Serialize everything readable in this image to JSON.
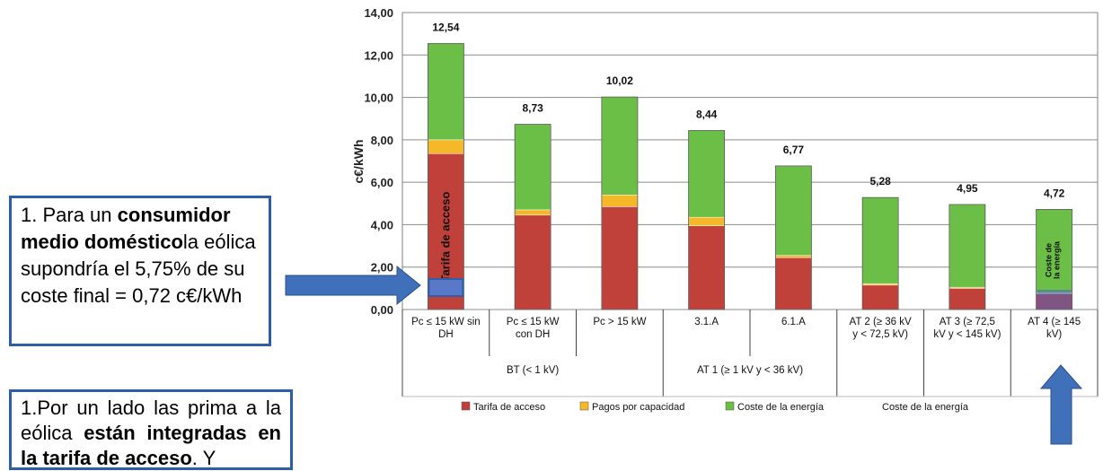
{
  "callouts": {
    "first": {
      "p1": "1. Para un ",
      "b1": "consumidor medio doméstico",
      "p2": "la eólica supondría el 5,75% de su coste final = 0,72 c€/kWh"
    },
    "second": {
      "p1": "1.Por un lado las prima a la eólica ",
      "b1": "están integradas en la tarifa de acceso",
      "p2": ". Y"
    }
  },
  "chart_data": {
    "type": "bar",
    "stacked": true,
    "ylabel": "c€/kWh",
    "ylim": [
      0,
      14
    ],
    "yticks": [
      "0,00",
      "2,00",
      "4,00",
      "6,00",
      "8,00",
      "10,00",
      "12,00",
      "14,00"
    ],
    "grid": true,
    "categories": [
      "Pc ≤ 15 kW sin DH",
      "Pc ≤ 15 kW con DH",
      "Pc > 15 kW",
      "3.1.A",
      "6.1.A",
      "AT 2 (≥ 36 kV y < 72,5 kV)",
      "AT 3 (≥ 72,5 kV y < 145 kV)",
      "AT 4 (≥ 145 kV)"
    ],
    "groups": [
      {
        "label": "BT (< 1 kV)",
        "span": 3
      },
      {
        "label": "AT 1 (≥ 1 kV y < 36 kV)",
        "span": 2
      },
      {
        "label": "",
        "span": 1
      },
      {
        "label": "",
        "span": 1
      },
      {
        "label": "",
        "span": 1
      }
    ],
    "series": [
      {
        "name": "Tarifa de acceso",
        "color": "#c0403a",
        "values": [
          7.35,
          4.45,
          4.85,
          3.95,
          2.45,
          1.15,
          1.0,
          0.75
        ]
      },
      {
        "name": "Pagos por capacidad",
        "color": "#f5b829",
        "values": [
          0.65,
          0.25,
          0.55,
          0.4,
          0.1,
          0.07,
          0.05,
          0.03
        ]
      },
      {
        "name": "Coste de la energía",
        "color": "#6cbf46",
        "values": [
          4.54,
          4.03,
          4.62,
          4.09,
          4.22,
          4.06,
          3.9,
          3.94
        ]
      }
    ],
    "totals": [
      12.54,
      8.73,
      10.02,
      8.44,
      6.77,
      5.28,
      4.95,
      4.72
    ],
    "total_labels": [
      "12,54",
      "8,73",
      "10,02",
      "8,44",
      "6,77",
      "5,28",
      "4,95",
      "4,72"
    ],
    "bar_annotations": {
      "first_bar": "Tarifa de acceso",
      "last_bar_line1": "Coste de",
      "last_bar_line2": "la energía"
    },
    "legend": {
      "placement": "bottom",
      "extra_label": "Coste de la energía"
    }
  },
  "colors": {
    "arrow": "#3f70b9",
    "callout_border": "#2e5fa6",
    "highlight_box": "#2e5fa6"
  }
}
